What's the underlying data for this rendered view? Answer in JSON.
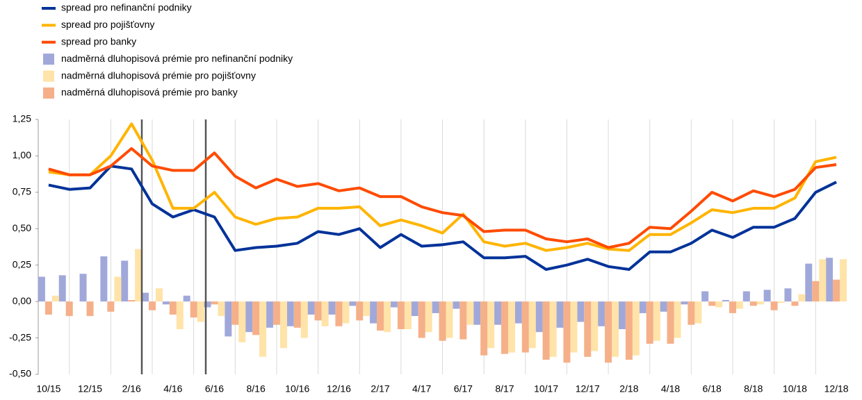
{
  "chart_data": {
    "type": "combo",
    "categories": [
      "10/15",
      null,
      "12/15",
      null,
      "2/16",
      null,
      "4/16",
      null,
      "6/16",
      null,
      "8/16",
      null,
      "10/16",
      null,
      "12/16",
      null,
      "2/17",
      null,
      "4/17",
      null,
      "6/17",
      null,
      "8/17",
      null,
      "10/17",
      null,
      "12/17",
      null,
      "2/18",
      null,
      "4/18",
      null,
      "6/18",
      null,
      "8/18",
      null,
      "10/18",
      null,
      "12/18"
    ],
    "ylim": [
      -0.5,
      1.25
    ],
    "yticks": [
      {
        "value": -0.5,
        "label": "-0,50"
      },
      {
        "value": -0.25,
        "label": "-0,25"
      },
      {
        "value": 0,
        "label": "0,00"
      },
      {
        "value": 0.25,
        "label": "0,25"
      },
      {
        "value": 0.5,
        "label": "0,50"
      },
      {
        "value": 0.75,
        "label": "0,75"
      },
      {
        "value": 1,
        "label": "1,00"
      },
      {
        "value": 1.25,
        "label": "1,25"
      }
    ],
    "grid": true,
    "legend": "top-left",
    "series": [
      {
        "name": "spread pro nefinanční podniky",
        "type": "line",
        "color": "#003299",
        "values": [
          0.8,
          0.77,
          0.78,
          0.93,
          0.91,
          0.67,
          0.58,
          0.63,
          0.58,
          0.35,
          0.37,
          0.38,
          0.4,
          0.48,
          0.46,
          0.5,
          0.37,
          0.46,
          0.38,
          0.39,
          0.41,
          0.3,
          0.3,
          0.31,
          0.22,
          0.25,
          0.29,
          0.24,
          0.22,
          0.34,
          0.34,
          0.4,
          0.49,
          0.44,
          0.51,
          0.51,
          0.57,
          0.75,
          0.82
        ]
      },
      {
        "name": "spread pro pojišťovny",
        "type": "line",
        "color": "#ffb400",
        "values": [
          0.89,
          0.87,
          0.87,
          1.0,
          1.22,
          0.97,
          0.64,
          0.64,
          0.75,
          0.58,
          0.53,
          0.57,
          0.58,
          0.64,
          0.64,
          0.65,
          0.52,
          0.56,
          0.52,
          0.47,
          0.6,
          0.41,
          0.38,
          0.4,
          0.35,
          0.37,
          0.4,
          0.36,
          0.35,
          0.46,
          0.46,
          0.54,
          0.63,
          0.61,
          0.64,
          0.64,
          0.71,
          0.96,
          0.99
        ]
      },
      {
        "name": "spread pro banky",
        "type": "line",
        "color": "#ff4b00",
        "values": [
          0.91,
          0.87,
          0.87,
          0.93,
          1.05,
          0.93,
          0.9,
          0.9,
          1.02,
          0.86,
          0.78,
          0.84,
          0.79,
          0.81,
          0.76,
          0.78,
          0.72,
          0.72,
          0.65,
          0.61,
          0.59,
          0.48,
          0.49,
          0.49,
          0.43,
          0.41,
          0.43,
          0.37,
          0.4,
          0.51,
          0.5,
          0.62,
          0.75,
          0.69,
          0.76,
          0.72,
          0.77,
          0.92,
          0.94
        ]
      },
      {
        "name": "nadměrná dluhopisová prémie pro nefinanční podniky",
        "type": "bar",
        "color": "#a0a8da",
        "values": [
          0.17,
          0.18,
          0.19,
          0.31,
          0.28,
          0.06,
          -0.02,
          0.04,
          -0.04,
          -0.24,
          -0.21,
          -0.18,
          -0.17,
          -0.09,
          -0.09,
          -0.03,
          -0.15,
          -0.04,
          -0.1,
          -0.08,
          -0.05,
          -0.16,
          -0.16,
          -0.15,
          -0.21,
          -0.18,
          -0.14,
          -0.17,
          -0.19,
          -0.08,
          -0.07,
          -0.02,
          0.07,
          0.01,
          0.07,
          0.08,
          0.09,
          0.26,
          0.3
        ]
      },
      {
        "name": "nadměrná dluhopisová prémie pro pojišťovny",
        "type": "bar",
        "color": "#ffe3a8",
        "values": [
          0.04,
          0.0,
          0.0,
          0.17,
          0.36,
          0.09,
          -0.19,
          -0.14,
          -0.1,
          -0.28,
          -0.38,
          -0.32,
          -0.25,
          -0.17,
          -0.15,
          -0.1,
          -0.21,
          -0.19,
          -0.21,
          -0.25,
          -0.16,
          -0.32,
          -0.35,
          -0.32,
          -0.38,
          -0.35,
          -0.34,
          -0.38,
          -0.37,
          -0.27,
          -0.25,
          -0.15,
          -0.04,
          -0.05,
          -0.02,
          -0.01,
          0.05,
          0.29,
          0.29
        ]
      },
      {
        "name": "nadměrná dluhopisová prémie pro banky",
        "type": "bar",
        "color": "#f5b089",
        "values": [
          -0.09,
          -0.1,
          -0.1,
          -0.07,
          0.01,
          -0.06,
          -0.09,
          -0.11,
          -0.02,
          -0.16,
          -0.23,
          -0.16,
          -0.18,
          -0.13,
          -0.17,
          -0.13,
          -0.2,
          -0.19,
          -0.25,
          -0.27,
          -0.26,
          -0.37,
          -0.36,
          -0.35,
          -0.4,
          -0.42,
          -0.38,
          -0.42,
          -0.4,
          -0.29,
          -0.29,
          -0.16,
          -0.03,
          -0.08,
          -0.03,
          -0.06,
          -0.03,
          0.14,
          0.15
        ]
      }
    ]
  }
}
